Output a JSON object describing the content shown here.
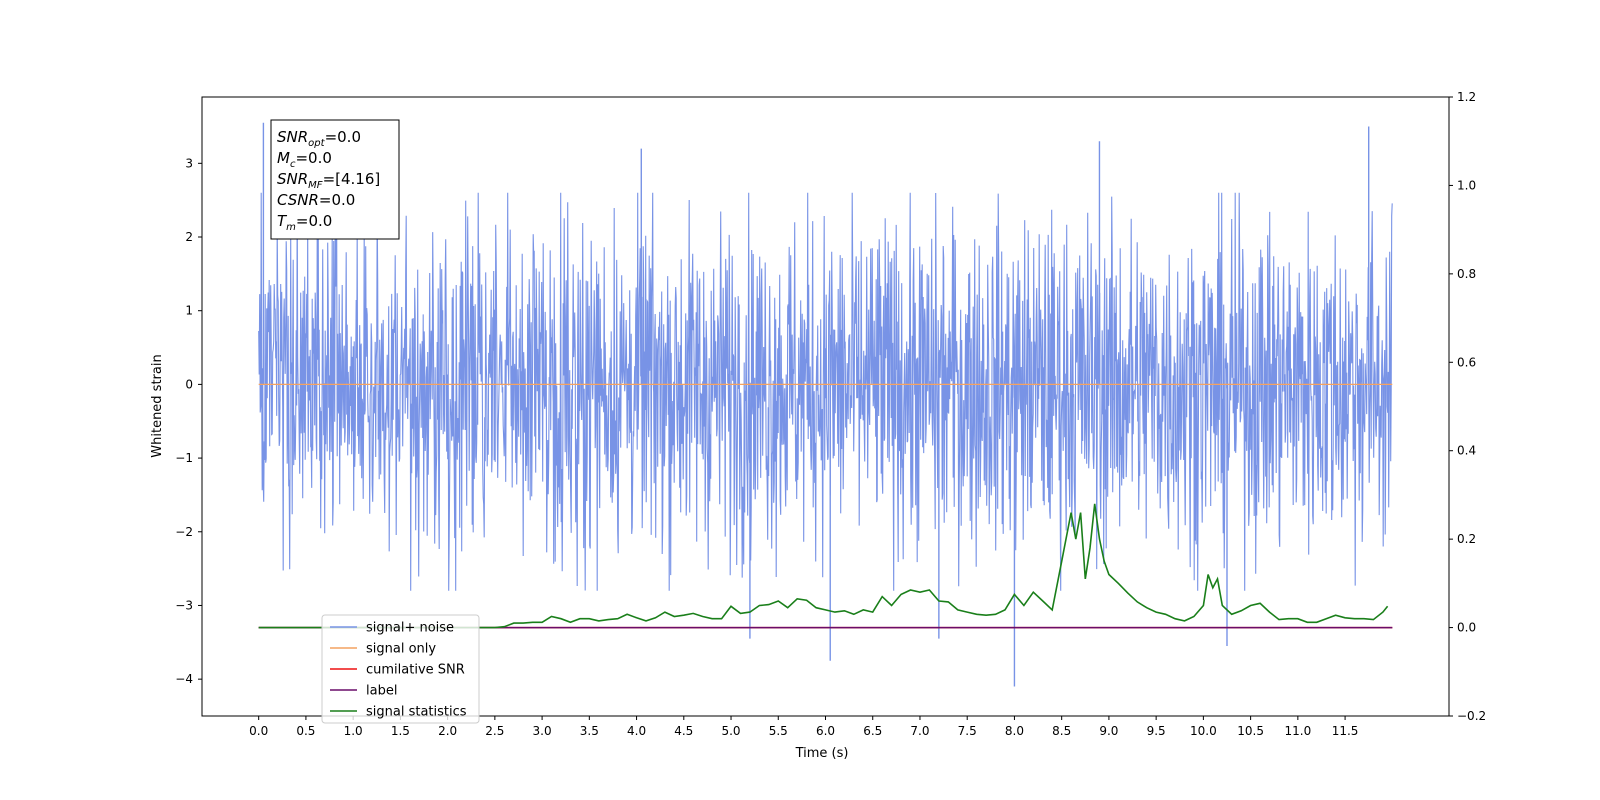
{
  "chart_data": {
    "type": "line",
    "xlabel": "Time (s)",
    "ylabel": "Whitened strain",
    "xlim": [
      -0.6,
      12.6
    ],
    "ylim": [
      -4.5,
      3.9
    ],
    "ylim_right": [
      -0.2,
      1.2
    ],
    "x_ticks": [
      "0.0",
      "0.5",
      "1.0",
      "1.5",
      "2.0",
      "2.5",
      "3.0",
      "3.5",
      "4.0",
      "4.5",
      "5.0",
      "5.5",
      "6.0",
      "6.5",
      "7.0",
      "7.5",
      "8.0",
      "8.5",
      "9.0",
      "9.5",
      "10.0",
      "10.5",
      "11.0",
      "11.5"
    ],
    "y_ticks": [
      "3",
      "2",
      "1",
      "0",
      "−1",
      "−2",
      "−3",
      "−4"
    ],
    "y_ticks_right": [
      "1.2",
      "1.0",
      "0.8",
      "0.6",
      "0.4",
      "0.2",
      "0.0",
      "−0.2"
    ],
    "grid": false,
    "legend_position": "lower-left",
    "annotation": [
      {
        "label": "SNR",
        "sub": "opt",
        "value": "=0.0"
      },
      {
        "label": "M",
        "sub": "c",
        "value": "=0.0"
      },
      {
        "label": "SNR",
        "sub": "MF",
        "value": "=[4.16]"
      },
      {
        "label": "CSNR",
        "sub": "",
        "value": "=0.0"
      },
      {
        "label": "T",
        "sub": "m",
        "value": "=0.0"
      }
    ],
    "series": [
      {
        "name": "signal+ noise",
        "color": "#7893e6",
        "axis": "left",
        "x_range": [
          0.0,
          12.0
        ],
        "envelope_typical": [
          -1.8,
          1.8
        ],
        "notable_spikes": [
          [
            0.05,
            3.55
          ],
          [
            11.75,
            3.5
          ],
          [
            4.05,
            3.2
          ],
          [
            8.9,
            3.3
          ],
          [
            8.0,
            -4.1
          ],
          [
            6.05,
            -3.75
          ],
          [
            10.25,
            -3.55
          ],
          [
            5.2,
            -3.45
          ],
          [
            7.2,
            -3.45
          ]
        ]
      },
      {
        "name": "signal only",
        "color": "#f4a261",
        "axis": "left",
        "x": [
          0.0,
          12.0
        ],
        "y": [
          0.0,
          0.0
        ]
      },
      {
        "name": "cumilative SNR",
        "color": "#ee1111",
        "axis": "right",
        "x": [
          0.0,
          12.0
        ],
        "y": [
          0.0,
          0.0
        ]
      },
      {
        "name": "label",
        "color": "#6a0d6a",
        "axis": "right",
        "x": [
          0.0,
          12.0
        ],
        "y": [
          0.0,
          0.0
        ]
      },
      {
        "name": "signal statistics",
        "color": "#1a7f1a",
        "axis": "right",
        "x": [
          0.0,
          0.5,
          1.0,
          1.5,
          2.0,
          2.3,
          2.5,
          2.6,
          2.7,
          2.8,
          2.9,
          3.0,
          3.1,
          3.2,
          3.3,
          3.4,
          3.5,
          3.6,
          3.7,
          3.8,
          3.9,
          4.0,
          4.1,
          4.2,
          4.3,
          4.4,
          4.5,
          4.6,
          4.7,
          4.8,
          4.9,
          5.0,
          5.1,
          5.2,
          5.3,
          5.4,
          5.5,
          5.6,
          5.7,
          5.8,
          5.9,
          6.0,
          6.1,
          6.2,
          6.3,
          6.4,
          6.5,
          6.6,
          6.7,
          6.8,
          6.9,
          7.0,
          7.1,
          7.2,
          7.3,
          7.4,
          7.5,
          7.6,
          7.7,
          7.8,
          7.9,
          8.0,
          8.1,
          8.2,
          8.3,
          8.4,
          8.5,
          8.6,
          8.65,
          8.7,
          8.75,
          8.8,
          8.85,
          8.9,
          8.95,
          9.0,
          9.1,
          9.2,
          9.3,
          9.4,
          9.5,
          9.6,
          9.7,
          9.8,
          9.9,
          10.0,
          10.05,
          10.1,
          10.15,
          10.2,
          10.3,
          10.4,
          10.5,
          10.6,
          10.7,
          10.8,
          10.9,
          11.0,
          11.1,
          11.2,
          11.3,
          11.4,
          11.5,
          11.6,
          11.7,
          11.8,
          11.9,
          11.95
        ],
        "y": [
          0.0,
          0.0,
          0.0,
          0.0,
          0.0,
          0.0,
          0.0,
          0.002,
          0.01,
          0.01,
          0.012,
          0.012,
          0.025,
          0.02,
          0.012,
          0.02,
          0.02,
          0.015,
          0.018,
          0.02,
          0.03,
          0.022,
          0.015,
          0.022,
          0.035,
          0.025,
          0.028,
          0.032,
          0.025,
          0.02,
          0.02,
          0.048,
          0.032,
          0.035,
          0.05,
          0.052,
          0.06,
          0.045,
          0.065,
          0.062,
          0.045,
          0.04,
          0.035,
          0.038,
          0.03,
          0.04,
          0.035,
          0.07,
          0.05,
          0.075,
          0.085,
          0.08,
          0.085,
          0.06,
          0.058,
          0.04,
          0.035,
          0.03,
          0.028,
          0.03,
          0.04,
          0.075,
          0.05,
          0.08,
          0.06,
          0.04,
          0.15,
          0.26,
          0.2,
          0.26,
          0.11,
          0.18,
          0.28,
          0.2,
          0.15,
          0.12,
          0.1,
          0.078,
          0.058,
          0.045,
          0.035,
          0.03,
          0.02,
          0.015,
          0.025,
          0.05,
          0.12,
          0.09,
          0.11,
          0.05,
          0.03,
          0.038,
          0.05,
          0.055,
          0.035,
          0.018,
          0.02,
          0.02,
          0.012,
          0.012,
          0.02,
          0.028,
          0.022,
          0.02,
          0.02,
          0.018,
          0.035,
          0.048
        ]
      }
    ]
  }
}
